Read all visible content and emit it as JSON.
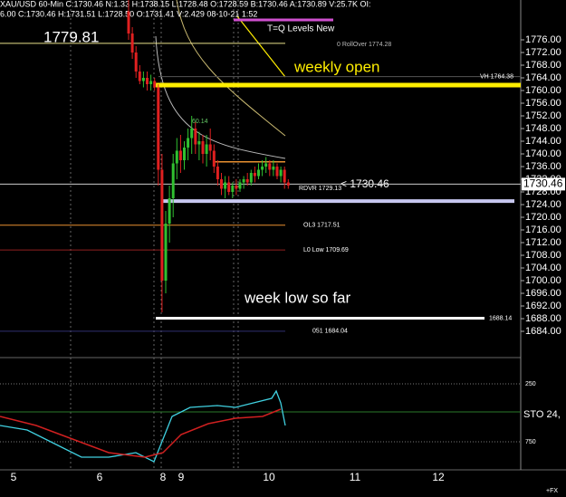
{
  "header": {
    "line1": "XAU/USD 60-Min C:1730.46 N:1.33 H:1738.15 L:1728.48 O:1728.59 B:1730.46 A:1730.89 V:25.7K OI:",
    "line2": "6.00 C:1730.46 H:1731.51 L:1728.50 O:1731.41 V:2.429 08-10-21 1:52"
  },
  "price_axis": {
    "ticks": [
      {
        "value": 1776,
        "label": "1776.00"
      },
      {
        "value": 1772,
        "label": "1772.00"
      },
      {
        "value": 1768,
        "label": "1768.00"
      },
      {
        "value": 1764,
        "label": "1764.00"
      },
      {
        "value": 1760,
        "label": "1760.00"
      },
      {
        "value": 1756,
        "label": "1756.00"
      },
      {
        "value": 1752,
        "label": "1752.00"
      },
      {
        "value": 1748,
        "label": "1748.00"
      },
      {
        "value": 1744,
        "label": "1744.00"
      },
      {
        "value": 1740,
        "label": "1740.00"
      },
      {
        "value": 1736,
        "label": "1736.00"
      },
      {
        "value": 1732,
        "label": "1732.00"
      },
      {
        "value": 1728,
        "label": "1728.00"
      },
      {
        "value": 1724,
        "label": "1724.00"
      },
      {
        "value": 1720,
        "label": "1720.00"
      },
      {
        "value": 1716,
        "label": "1716.00"
      },
      {
        "value": 1712,
        "label": "1712.00"
      },
      {
        "value": 1708,
        "label": "1708.00"
      },
      {
        "value": 1704,
        "label": "1704.00"
      },
      {
        "value": 1700,
        "label": "1700.00"
      },
      {
        "value": 1696,
        "label": "1696.00"
      },
      {
        "value": 1692,
        "label": "1692.00"
      },
      {
        "value": 1688,
        "label": "1688.00"
      },
      {
        "value": 1684,
        "label": "1684.00"
      }
    ],
    "current": {
      "value": 1730.46,
      "label": "1730.46"
    }
  },
  "candles": [
    [
      1785,
      1790,
      1776,
      1778
    ],
    [
      1778,
      1780,
      1770,
      1772
    ],
    [
      1772,
      1774,
      1764,
      1766
    ],
    [
      1766,
      1768,
      1762,
      1763
    ],
    [
      1763,
      1766,
      1761,
      1764
    ],
    [
      1764,
      1766,
      1760,
      1762
    ],
    [
      1762,
      1765,
      1760,
      1763
    ],
    [
      1763,
      1764,
      1760,
      1761
    ],
    [
      1761,
      1762,
      1730,
      1735
    ],
    [
      1735,
      1740,
      1690,
      1700
    ],
    [
      1700,
      1722,
      1696,
      1718
    ],
    [
      1718,
      1730,
      1712,
      1726
    ],
    [
      1726,
      1740,
      1720,
      1737
    ],
    [
      1737,
      1745,
      1732,
      1741
    ],
    [
      1741,
      1746,
      1734,
      1738
    ],
    [
      1738,
      1744,
      1735,
      1742
    ],
    [
      1742,
      1748,
      1738,
      1745
    ],
    [
      1745,
      1752,
      1740,
      1748
    ],
    [
      1748,
      1750,
      1740,
      1743
    ],
    [
      1743,
      1747,
      1738,
      1744
    ],
    [
      1744,
      1746,
      1737,
      1740
    ],
    [
      1740,
      1746,
      1736,
      1743
    ],
    [
      1743,
      1748,
      1738,
      1741
    ],
    [
      1741,
      1743,
      1734,
      1736
    ],
    [
      1736,
      1738,
      1730,
      1732
    ],
    [
      1732,
      1734,
      1727,
      1729
    ],
    [
      1729,
      1733,
      1726,
      1731
    ],
    [
      1731,
      1733,
      1727,
      1728
    ],
    [
      1728,
      1731,
      1726,
      1730
    ],
    [
      1730,
      1732,
      1727,
      1729
    ],
    [
      1729,
      1732,
      1728,
      1731
    ],
    [
      1731,
      1733,
      1729,
      1732
    ],
    [
      1732,
      1734,
      1730,
      1731
    ],
    [
      1731,
      1735,
      1730,
      1734
    ],
    [
      1734,
      1736,
      1731,
      1733
    ],
    [
      1733,
      1737,
      1732,
      1735
    ],
    [
      1735,
      1738,
      1733,
      1736
    ],
    [
      1736,
      1739,
      1734,
      1737
    ],
    [
      1737,
      1738,
      1733,
      1735
    ],
    [
      1735,
      1738,
      1733,
      1736
    ],
    [
      1736,
      1737,
      1732,
      1733
    ],
    [
      1733,
      1736,
      1731,
      1735
    ],
    [
      1735,
      1736,
      1729,
      1731
    ],
    [
      1731,
      1732,
      1729,
      1730
    ]
  ],
  "levels": [
    {
      "value": 1774.9,
      "color": "#e8e08a"
    },
    {
      "value": 1764.38,
      "color": "#555",
      "label": "VH 1764.38"
    },
    {
      "value": 1761.7,
      "color": "#ffee00"
    },
    {
      "value": 1730.46,
      "color": "#cccccc"
    },
    {
      "value": 1725.1,
      "color": "#c8c8f0"
    },
    {
      "value": 1717.51,
      "color": "#e89030",
      "label": "OL3 1717.51"
    },
    {
      "value": 1709.69,
      "color": "#902020",
      "label": "L0 Low 1709.69"
    },
    {
      "value": 1688.14,
      "color": "#ffffff",
      "label": "1688.14"
    },
    {
      "value": 1684.04,
      "color": "#303070",
      "label": "051 1684.04"
    },
    {
      "value": 1737.5,
      "color": "#e89030"
    }
  ],
  "annotations": {
    "high": "1779.81",
    "levels_title": "T=Q Levels New",
    "rollover": "0 RollOver 1774.28",
    "weekly_open": "weekly open",
    "swing": "60.14",
    "rdvr": "RDVR 1729.13",
    "last": "< 1730.46",
    "week_low": "week low so far"
  },
  "stochastic": {
    "label": "STO  24,",
    "upper": "250",
    "lower": "750"
  },
  "time_axis": [
    "5",
    "6",
    "8",
    "9",
    "10",
    "11",
    "12"
  ],
  "corner": "+FX"
}
